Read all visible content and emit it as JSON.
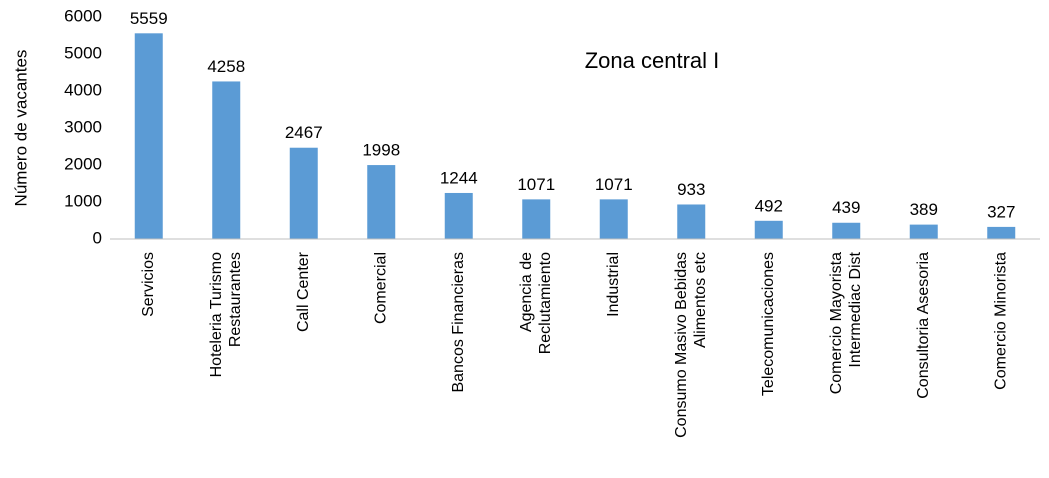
{
  "chart_data": {
    "type": "bar",
    "title": "Zona central I",
    "y_label": "Número de vacantes",
    "categories": [
      "Servicios",
      "Hoteleria Turismo\nRestaurantes",
      "Call Center",
      "Comercial",
      "Bancos Financieras",
      "Agencia de\nReclutamiento",
      "Industrial",
      "Consumo Masivo Bebidas\nAlimentos etc",
      "Telecomunicaciones",
      "Comercio Mayorista\nIntermediac Dist",
      "Consultoria Asesoria",
      "Comercio Minorista"
    ],
    "values": [
      5559,
      4258,
      2467,
      1998,
      1244,
      1071,
      1071,
      933,
      492,
      439,
      389,
      327
    ],
    "color": "#5b9bd5",
    "ylim": [
      0,
      6000
    ],
    "yticks": [
      0,
      1000,
      2000,
      3000,
      4000,
      5000,
      6000
    ],
    "grid": false
  }
}
